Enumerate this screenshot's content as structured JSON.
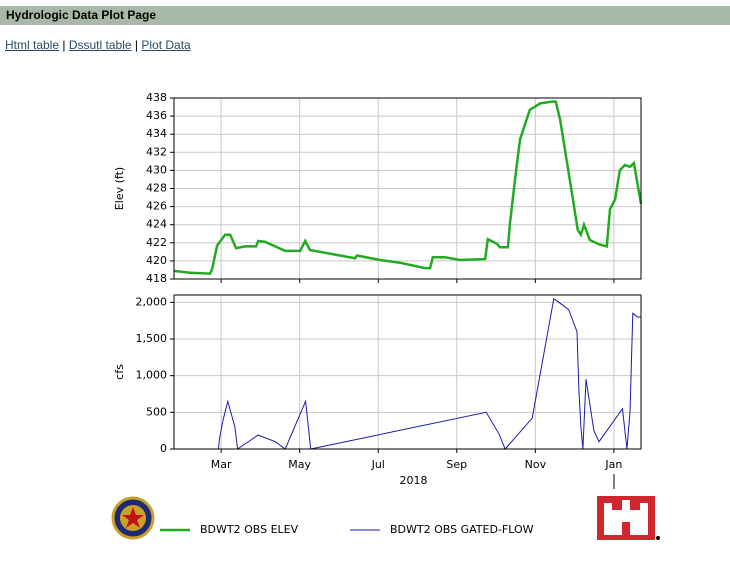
{
  "header": {
    "title": "Hydrologic Data Plot Page"
  },
  "links": [
    "Html table",
    "Dssutl table",
    "Plot Data"
  ],
  "link_separator": "|",
  "chart_data": [
    {
      "type": "line",
      "ylabel": "Elev (ft)",
      "xlim": [
        1.8,
        13.69
      ],
      "xticks": [
        {
          "value": 3,
          "label": "Mar"
        },
        {
          "value": 5,
          "label": "May"
        },
        {
          "value": 7,
          "label": "Jul"
        },
        {
          "value": 9,
          "label": "Sep"
        },
        {
          "value": 11,
          "label": "Nov"
        },
        {
          "value": 13,
          "label": "Jan"
        }
      ],
      "ylim": [
        418,
        438
      ],
      "yticks": [
        418,
        420,
        422,
        424,
        426,
        428,
        430,
        432,
        434,
        436,
        438
      ],
      "grid": true,
      "x": [
        1.8,
        2.21,
        2.72,
        2.77,
        2.9,
        3.1,
        3.23,
        3.38,
        3.61,
        3.89,
        3.94,
        4.12,
        4.63,
        5.01,
        5.14,
        5.26,
        5.9,
        6.41,
        6.46,
        7.05,
        7.55,
        8.19,
        8.32,
        8.39,
        8.7,
        9.08,
        9.72,
        9.79,
        10.02,
        10.1,
        10.3,
        10.35,
        10.48,
        10.61,
        10.86,
        11.12,
        11.42,
        11.52,
        11.63,
        11.88,
        12.08,
        12.16,
        12.24,
        12.39,
        12.64,
        12.82,
        12.9,
        13.03,
        13.15,
        13.28,
        13.41,
        13.51,
        13.69
      ],
      "series": [
        {
          "name": "BDWT2 OBS ELEV",
          "color": "#22aa22",
          "values": [
            418.9,
            418.7,
            418.6,
            419.1,
            421.7,
            422.9,
            422.9,
            421.4,
            421.6,
            421.6,
            422.2,
            422.1,
            421.1,
            421.1,
            422.2,
            421.2,
            420.7,
            420.3,
            420.6,
            420.1,
            419.8,
            419.2,
            419.2,
            420.4,
            420.4,
            420.1,
            420.2,
            422.4,
            421.9,
            421.5,
            421.5,
            424.0,
            428.9,
            433.4,
            436.7,
            437.4,
            437.6,
            437.6,
            435.6,
            428.9,
            423.4,
            422.9,
            424.0,
            422.3,
            421.8,
            421.6,
            425.7,
            426.8,
            430.0,
            430.6,
            430.4,
            430.8,
            426.3
          ]
        }
      ]
    },
    {
      "type": "line",
      "ylabel": "cfs",
      "xlabel": "2018",
      "xlim": [
        1.8,
        13.69
      ],
      "xticks": [
        {
          "value": 3,
          "label": "Mar"
        },
        {
          "value": 5,
          "label": "May"
        },
        {
          "value": 7,
          "label": "Jul"
        },
        {
          "value": 9,
          "label": "Sep"
        },
        {
          "value": 11,
          "label": "Nov"
        },
        {
          "value": 13,
          "label": "Jan"
        }
      ],
      "ylim": [
        0,
        2100
      ],
      "yticks": [
        0,
        500,
        {
          "value": 1000,
          "label": "1,000"
        },
        {
          "value": 1500,
          "label": "1,500"
        },
        {
          "value": 2000,
          "label": "2,000"
        }
      ],
      "grid": true,
      "x": [
        1.8,
        2.93,
        2.96,
        3.05,
        3.17,
        3.35,
        3.42,
        3.94,
        4.38,
        4.63,
        5.15,
        5.28,
        9.75,
        10.08,
        10.23,
        10.92,
        11.47,
        11.6,
        11.85,
        12.06,
        12.11,
        12.16,
        12.21,
        12.29,
        12.42,
        12.49,
        12.62,
        13.22,
        13.33,
        13.41,
        13.48,
        13.6,
        13.69
      ],
      "series": [
        {
          "name": "BDWT2 OBS GATED-FLOW",
          "color": "#1a1aaa",
          "values": [
            0,
            0,
            150,
            400,
            650,
            300,
            0,
            190,
            100,
            0,
            650,
            0,
            500,
            200,
            0,
            420,
            2050,
            2000,
            1900,
            1600,
            800,
            300,
            0,
            950,
            500,
            250,
            100,
            550,
            0,
            500,
            1850,
            1800,
            1800
          ]
        }
      ]
    }
  ]
}
